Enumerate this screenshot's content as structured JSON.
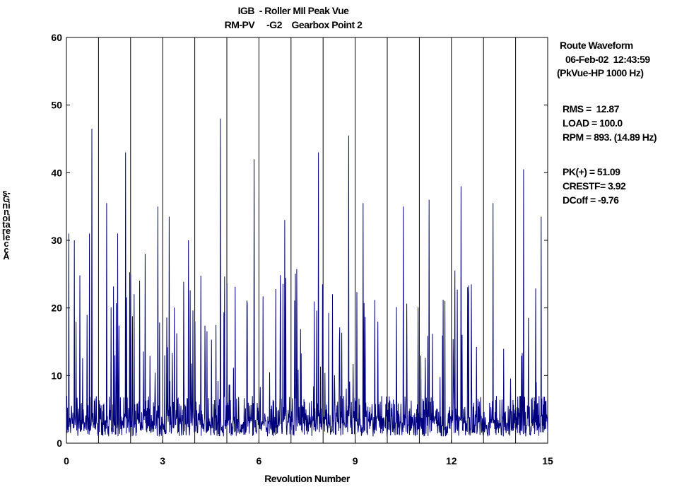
{
  "title": {
    "line1": "IGB  - Roller MIl Peak Vue",
    "line2": "RM-PV     -G2    Gearbox Point 2"
  },
  "info": {
    "waveform_type": "Route Waveform",
    "datetime": "06-Feb-02  12:43:59",
    "pkvue": "(PkVue-HP 1000 Hz)",
    "rms": "RMS =  12.87",
    "load": "LOAD = 100.0",
    "rpm": "RPM = 893. (14.89 Hz)",
    "pk": "PK(+) = 51.09",
    "crestf": "CRESTF= 3.92",
    "dcoff": "DCoff = -9.76"
  },
  "chart_data": {
    "type": "line",
    "title": "",
    "xlabel": "Revolution Number",
    "ylabel": "Acceleration in G-s",
    "xlim": [
      0,
      15
    ],
    "ylim": [
      0,
      60
    ],
    "xticks": [
      0,
      3,
      6,
      9,
      12,
      15
    ],
    "yticks": [
      0,
      10,
      20,
      30,
      40,
      50,
      60
    ],
    "revolution_markers": [
      1,
      2,
      3,
      4,
      5,
      6,
      7,
      8,
      9,
      10,
      11,
      12,
      13,
      14,
      15
    ],
    "series_color": "#00007f",
    "grid": "vertical lines at each revolution",
    "major_peaks": [
      {
        "x": 0.08,
        "y": 31
      },
      {
        "x": 0.25,
        "y": 30
      },
      {
        "x": 0.72,
        "y": 31
      },
      {
        "x": 0.79,
        "y": 46.5
      },
      {
        "x": 1.25,
        "y": 35.5
      },
      {
        "x": 1.6,
        "y": 31
      },
      {
        "x": 1.84,
        "y": 43
      },
      {
        "x": 2.45,
        "y": 28
      },
      {
        "x": 2.85,
        "y": 35
      },
      {
        "x": 3.2,
        "y": 33.5
      },
      {
        "x": 3.8,
        "y": 30
      },
      {
        "x": 4.8,
        "y": 48
      },
      {
        "x": 5.85,
        "y": 42
      },
      {
        "x": 6.8,
        "y": 33
      },
      {
        "x": 7.85,
        "y": 43
      },
      {
        "x": 8.8,
        "y": 45.5
      },
      {
        "x": 9.25,
        "y": 35.5
      },
      {
        "x": 10.5,
        "y": 35
      },
      {
        "x": 11.3,
        "y": 36
      },
      {
        "x": 12.3,
        "y": 38
      },
      {
        "x": 13.3,
        "y": 35.5
      },
      {
        "x": 14.25,
        "y": 40.5
      },
      {
        "x": 14.8,
        "y": 33.5
      }
    ]
  }
}
